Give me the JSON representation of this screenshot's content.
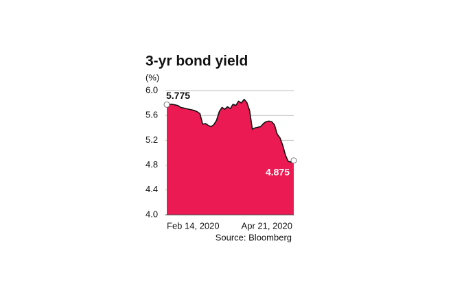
{
  "chart_data": {
    "type": "area",
    "title": "3-yr bond yield",
    "y_label": "(%)",
    "source": "Source: Bloomberg",
    "categories": [
      "Feb 14, 2020",
      null,
      null,
      null,
      null,
      null,
      null,
      null,
      null,
      null,
      null,
      null,
      null,
      null,
      null,
      null,
      null,
      null,
      null,
      null,
      null,
      null,
      null,
      null,
      null,
      null,
      null,
      null,
      null,
      null,
      null,
      null,
      null,
      null,
      null,
      null,
      null,
      null,
      null,
      null,
      null,
      null,
      null,
      null,
      null,
      null,
      "Apr 21, 2020"
    ],
    "values": [
      5.775,
      5.78,
      5.78,
      5.77,
      5.76,
      5.73,
      5.72,
      5.71,
      5.7,
      5.69,
      5.68,
      5.66,
      5.63,
      5.46,
      5.47,
      5.44,
      5.42,
      5.45,
      5.52,
      5.66,
      5.73,
      5.7,
      5.74,
      5.71,
      5.78,
      5.76,
      5.83,
      5.8,
      5.86,
      5.81,
      5.68,
      5.38,
      5.4,
      5.41,
      5.42,
      5.47,
      5.5,
      5.51,
      5.5,
      5.45,
      5.3,
      5.24,
      5.12,
      4.96,
      4.86,
      4.85,
      4.875
    ],
    "color": "#ec1a52",
    "ylim": [
      4.0,
      6.0
    ],
    "yticks": [
      {
        "value": 4.0,
        "label": "4.0"
      },
      4.4,
      4.8,
      5.2,
      5.6,
      {
        "value": 6.0,
        "label": "6.0"
      }
    ],
    "grid": true
  }
}
